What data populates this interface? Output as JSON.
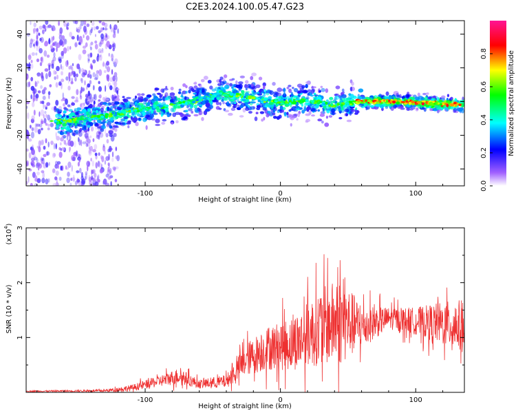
{
  "title": "C2E3.2024.100.05.47.G23",
  "chart_data": [
    {
      "type": "heatmap",
      "xlabel": "Height of straight line (km)",
      "ylabel": "Frequency (Hz)",
      "xlim": [
        -188,
        136
      ],
      "ylim": [
        -50,
        48
      ],
      "x_ticks": [
        -100,
        0,
        100
      ],
      "y_ticks": [
        -40,
        -20,
        0,
        20,
        40
      ],
      "colorbar": {
        "label": "Normalized spectral amplitude",
        "range": [
          0,
          1
        ],
        "ticks": [
          0.0,
          0.2,
          0.4,
          0.6,
          0.8
        ],
        "colormap": [
          "#ffffff",
          "#8a2be2",
          "#0000ff",
          "#00ffff",
          "#00ff00",
          "#ffff00",
          "#ff0000",
          "#ff1493"
        ]
      },
      "ridge": [
        {
          "x": -188,
          "y": -12
        },
        {
          "x": -160,
          "y": -12
        },
        {
          "x": -140,
          "y": -10
        },
        {
          "x": -120,
          "y": -7
        },
        {
          "x": -100,
          "y": -4
        },
        {
          "x": -80,
          "y": -2
        },
        {
          "x": -60,
          "y": 1
        },
        {
          "x": -45,
          "y": 5
        },
        {
          "x": -35,
          "y": 4
        },
        {
          "x": -20,
          "y": 2
        },
        {
          "x": 0,
          "y": -1
        },
        {
          "x": 20,
          "y": 1
        },
        {
          "x": 40,
          "y": -2
        },
        {
          "x": 60,
          "y": 0
        },
        {
          "x": 90,
          "y": 0
        },
        {
          "x": 136,
          "y": -2
        }
      ]
    },
    {
      "type": "line",
      "xlabel": "Height of straight line (km)",
      "ylabel": "SNR (10 * v/v)",
      "y_multiplier": "(x10",
      "y_multiplier_exp": "4",
      "xlim": [
        -188,
        136
      ],
      "ylim": [
        0,
        3
      ],
      "x_ticks": [
        -100,
        0,
        100
      ],
      "y_ticks": [
        1,
        2,
        3
      ],
      "color": "#ee3030",
      "envelope": [
        {
          "x": -188,
          "mean": 0.02,
          "spread": 0.01
        },
        {
          "x": -130,
          "mean": 0.03,
          "spread": 0.02
        },
        {
          "x": -110,
          "mean": 0.08,
          "spread": 0.06
        },
        {
          "x": -90,
          "mean": 0.2,
          "spread": 0.1
        },
        {
          "x": -75,
          "mean": 0.3,
          "spread": 0.15
        },
        {
          "x": -60,
          "mean": 0.15,
          "spread": 0.08
        },
        {
          "x": -40,
          "mean": 0.2,
          "spread": 0.12
        },
        {
          "x": -25,
          "mean": 0.6,
          "spread": 0.3
        },
        {
          "x": -10,
          "mean": 0.8,
          "spread": 0.4
        },
        {
          "x": 10,
          "mean": 0.9,
          "spread": 0.5
        },
        {
          "x": 30,
          "mean": 1.2,
          "spread": 0.7
        },
        {
          "x": 45,
          "mean": 1.3,
          "spread": 0.8
        },
        {
          "x": 60,
          "mean": 1.2,
          "spread": 0.4
        },
        {
          "x": 80,
          "mean": 1.35,
          "spread": 0.2
        },
        {
          "x": 100,
          "mean": 1.3,
          "spread": 0.25
        },
        {
          "x": 120,
          "mean": 1.25,
          "spread": 0.4
        },
        {
          "x": 136,
          "mean": 1.2,
          "spread": 0.5
        }
      ]
    }
  ]
}
